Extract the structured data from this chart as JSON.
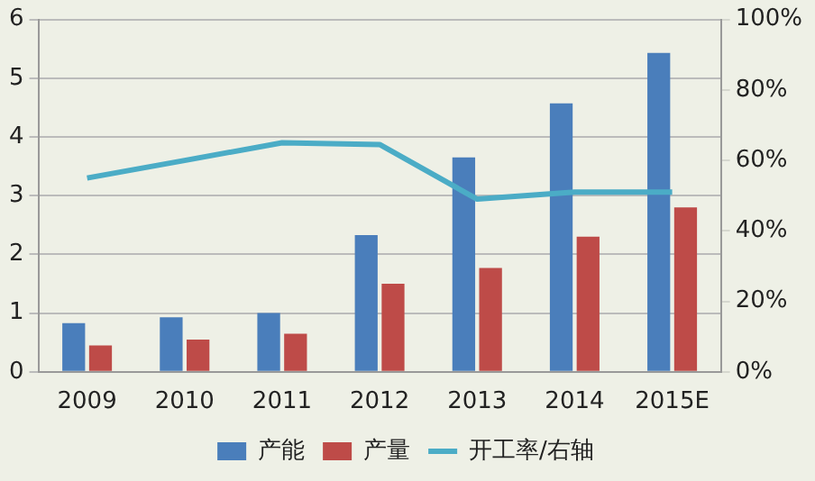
{
  "chart_data": {
    "type": "bar",
    "categories": [
      "2009",
      "2010",
      "2011",
      "2012",
      "2013",
      "2014",
      "2015E"
    ],
    "series": [
      {
        "name": "产能",
        "color": "#4a7ebb",
        "values": [
          0.83,
          0.93,
          1.0,
          2.33,
          3.65,
          4.57,
          5.43
        ]
      },
      {
        "name": "产量",
        "color": "#be4b48",
        "values": [
          0.45,
          0.55,
          0.65,
          1.5,
          1.77,
          2.3,
          2.8
        ]
      },
      {
        "name": "开工率/右轴",
        "type": "line",
        "axis": "y2",
        "color": "#4bacc6",
        "values": [
          55,
          60,
          65,
          64.5,
          49,
          51,
          51
        ]
      }
    ],
    "ylim": [
      0,
      6
    ],
    "yticks": [
      0,
      1,
      2,
      3,
      4,
      5,
      6
    ],
    "y2lim": [
      0,
      100
    ],
    "y2ticks": [
      {
        "value": 0,
        "label": "0%"
      },
      {
        "value": 20,
        "label": "20%"
      },
      {
        "value": 40,
        "label": "40%"
      },
      {
        "value": 60,
        "label": "60%"
      },
      {
        "value": 80,
        "label": "80%"
      },
      {
        "value": 100,
        "label": "100%"
      }
    ],
    "grid": "y",
    "legend": "bottom",
    "marker": "none"
  }
}
